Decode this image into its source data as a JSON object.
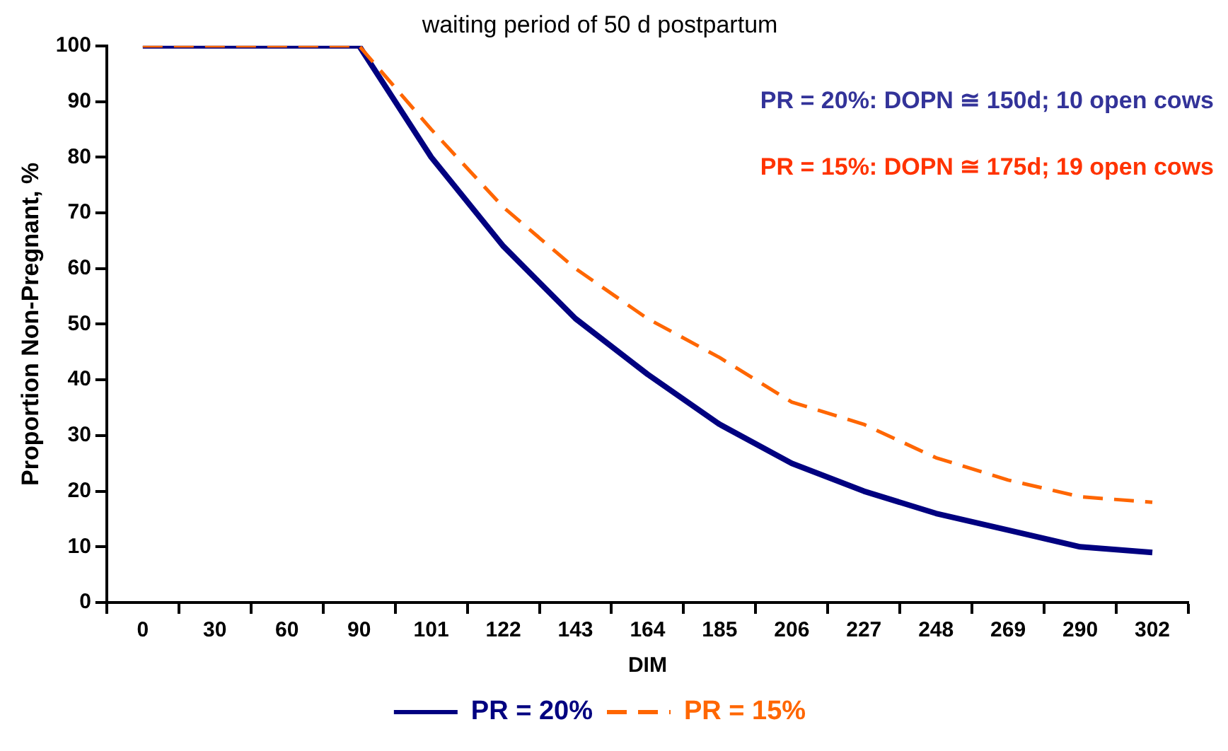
{
  "chart_data": {
    "type": "line",
    "title": "waiting period of 50 d postpartum",
    "xlabel": "DIM",
    "ylabel": "Proportion Non-Pregnant, %",
    "categories": [
      "0",
      "30",
      "60",
      "90",
      "101",
      "122",
      "143",
      "164",
      "185",
      "206",
      "227",
      "248",
      "269",
      "290",
      "302"
    ],
    "series": [
      {
        "name": "PR = 20%",
        "color": "#000080",
        "line_style": "solid",
        "values": [
          100,
          100,
          100,
          100,
          80,
          64,
          51,
          41,
          32,
          25,
          20,
          16,
          13,
          10,
          9
        ]
      },
      {
        "name": "PR = 15%",
        "color": "#ff6600",
        "line_style": "dashed",
        "values": [
          100,
          100,
          100,
          100,
          85,
          71,
          60,
          51,
          44,
          36,
          32,
          26,
          22,
          19,
          18
        ]
      }
    ],
    "annotations": [
      "PR = 20%: DOPN ≅ 150d; 10 open cows",
      "PR = 15%: DOPN ≅ 175d; 19 open cows"
    ],
    "ylim": [
      0,
      100
    ],
    "yticks": [
      0,
      10,
      20,
      30,
      40,
      50,
      60,
      70,
      80,
      90,
      100
    ],
    "grid": false,
    "legend": "bottom",
    "marker": "none"
  }
}
